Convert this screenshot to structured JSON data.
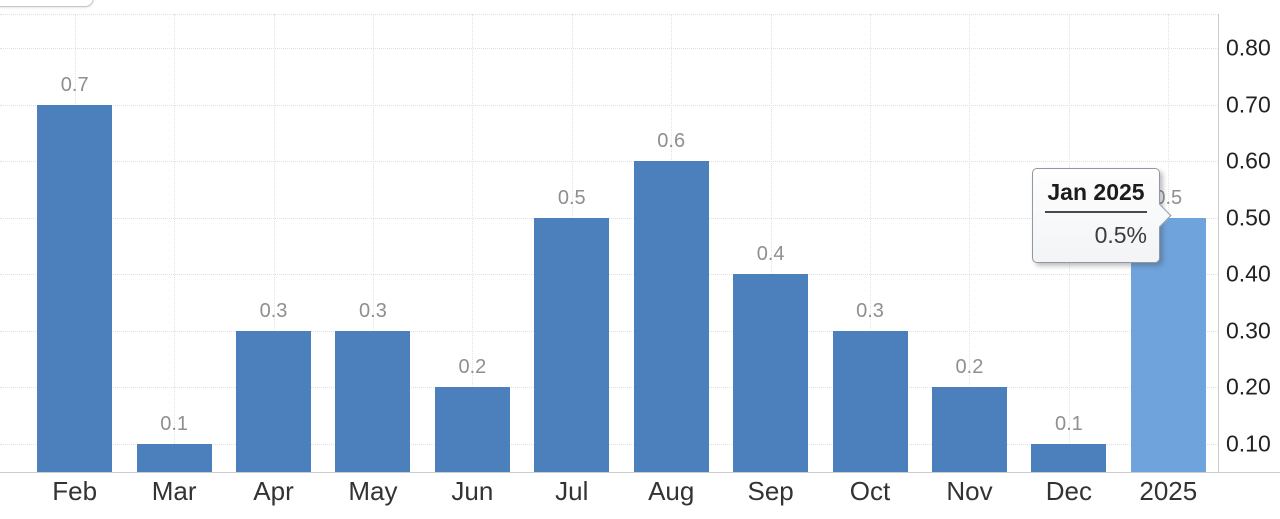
{
  "chart": {
    "tooltip": {
      "title": "Jan 2025",
      "value": "0.5%"
    }
  },
  "chart_data": {
    "type": "bar",
    "categories": [
      "Feb",
      "Mar",
      "Apr",
      "May",
      "Jun",
      "Jul",
      "Aug",
      "Sep",
      "Oct",
      "Nov",
      "Dec",
      "2025"
    ],
    "values": [
      0.7,
      0.1,
      0.3,
      0.3,
      0.2,
      0.5,
      0.6,
      0.4,
      0.3,
      0.2,
      0.1,
      0.5
    ],
    "data_labels": [
      "0.7",
      "0.1",
      "0.3",
      "0.3",
      "0.2",
      "0.5",
      "0.6",
      "0.4",
      "0.3",
      "0.2",
      "0.1",
      "0.5"
    ],
    "y_ticks": [
      {
        "label": "0.80",
        "value": 0.8
      },
      {
        "label": "0.70",
        "value": 0.7
      },
      {
        "label": "0.60",
        "value": 0.6
      },
      {
        "label": "0.50",
        "value": 0.5
      },
      {
        "label": "0.40",
        "value": 0.4
      },
      {
        "label": "0.30",
        "value": 0.3
      },
      {
        "label": "0.20",
        "value": 0.2
      },
      {
        "label": "0.10",
        "value": 0.1
      }
    ],
    "ylim": [
      0.05,
      0.86
    ],
    "xlabel": "",
    "ylabel": "",
    "title": "",
    "grid": true,
    "legend": false,
    "y_axis_position": "right",
    "highlight_index": 11,
    "colors": {
      "bar": "#4c80bd",
      "bar_highlight": "#6fa3dc",
      "data_label": "#8f8f8f",
      "x_label": "#333333",
      "y_label": "#222222",
      "gridline": "#e0e0e0",
      "axis_line": "#cccccc",
      "tooltip_border": "#8d99a6"
    }
  }
}
